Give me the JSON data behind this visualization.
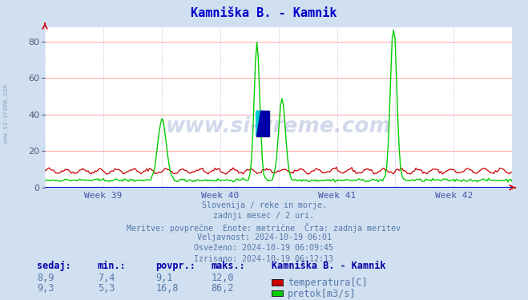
{
  "title": "Kamniška B. - Kamnik",
  "title_color": "#0000cc",
  "bg_color": "#d0e0f0",
  "plot_bg_color": "#ffffff",
  "grid_color_h": "#ffaaaa",
  "grid_color_v": "#ccccdd",
  "ylim": [
    0,
    88
  ],
  "yticks": [
    0,
    20,
    40,
    60,
    80
  ],
  "week_labels": [
    "Week 39",
    "Week 40",
    "Week 41",
    "Week 42"
  ],
  "week_label_color": "#4455aa",
  "watermark_text": "www.si-vreme.com",
  "watermark_color": "#3355aa",
  "watermark_alpha": 0.22,
  "info_lines": [
    "Slovenija / reke in morje.",
    "zadnji mesec / 2 uri.",
    "Meritve: povprečne  Enote: metrične  Črta: zadnja meritev",
    "Veljavnost: 2024-10-19 06:01",
    "Osveženo: 2024-10-19 06:09:45",
    "Izrisano: 2024-10-19 06:12:13"
  ],
  "info_color": "#5577aa",
  "table_headers": [
    "sedaj:",
    "min.:",
    "povpr.:",
    "maks.:"
  ],
  "table_header_color": "#0000aa",
  "table_row1": [
    "8,9",
    "7,4",
    "9,1",
    "12,0"
  ],
  "table_row2": [
    "9,3",
    "5,3",
    "16,8",
    "86,2"
  ],
  "legend_title": "Kamniška B. - Kamnik",
  "legend_items": [
    "temperatura[C]",
    "pretok[m3/s]"
  ],
  "legend_colors": [
    "#cc0000",
    "#00cc00"
  ],
  "temp_color": "#cc0000",
  "flow_color": "#00cc00",
  "side_text": "www.si-vreme.com",
  "side_text_color": "#8899bb",
  "arrow_color": "#cc0000"
}
